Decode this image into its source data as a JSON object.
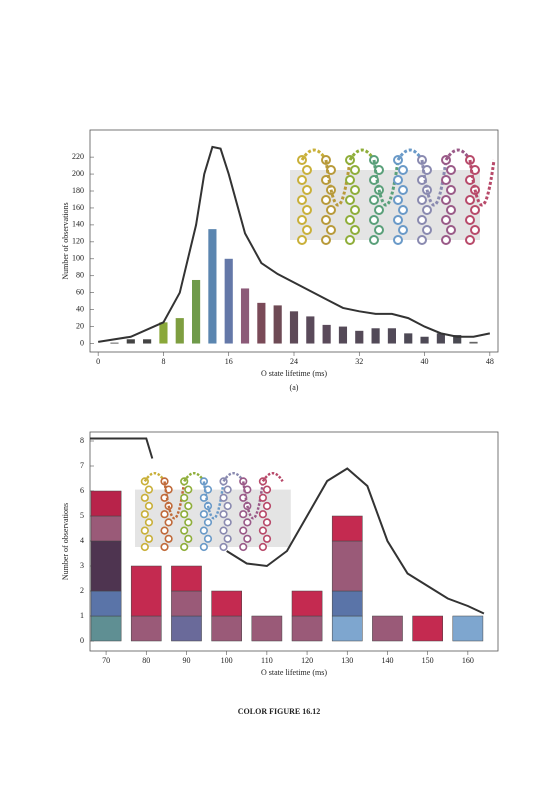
{
  "chart_data": [
    {
      "type": "bar",
      "label": "(a)",
      "xlabel": "O state lifetime (ms)",
      "ylabel": "Number of observations",
      "xlim": [
        -1,
        49
      ],
      "xticks": [
        0,
        8,
        16,
        24,
        32,
        40,
        48
      ],
      "ylim": [
        -10,
        252
      ],
      "yticks": [
        0,
        20,
        40,
        60,
        80,
        100,
        120,
        140,
        160,
        180,
        200,
        220
      ],
      "bar_width": 1,
      "series": [
        {
          "type": "bar",
          "x": [
            2,
            4,
            6,
            8,
            10,
            12,
            14,
            16,
            18,
            20,
            22,
            24,
            26,
            28,
            30,
            32,
            34,
            36,
            38,
            40,
            42,
            44,
            46
          ],
          "values": [
            1,
            5,
            5,
            25,
            30,
            75,
            135,
            100,
            65,
            48,
            45,
            38,
            32,
            22,
            20,
            15,
            18,
            18,
            12,
            8,
            12,
            10,
            2
          ],
          "colors": [
            "#444444",
            "#444444",
            "#444444",
            "#8aa83a",
            "#7e9e40",
            "#6f9a4a",
            "#5b86b0",
            "#6478a8",
            "#8c5a78",
            "#7a4a58",
            "#6e4a55",
            "#5e4a58",
            "#5a4a5a",
            "#5a4a5a",
            "#554a58",
            "#554a58",
            "#524a58",
            "#524a58",
            "#4e4a56",
            "#4e4a56",
            "#4e4a56",
            "#4a4a52",
            "#666666"
          ]
        },
        {
          "type": "line",
          "color": "#333333",
          "x": [
            0,
            4,
            8,
            10,
            12,
            13,
            14,
            15,
            16,
            18,
            20,
            22,
            24,
            26,
            28,
            30,
            32,
            34,
            36,
            38,
            40,
            42,
            44,
            46,
            48
          ],
          "values": [
            2,
            8,
            25,
            60,
            140,
            200,
            232,
            230,
            200,
            130,
            95,
            82,
            72,
            62,
            52,
            42,
            38,
            35,
            35,
            30,
            20,
            12,
            8,
            8,
            12
          ]
        }
      ]
    },
    {
      "type": "bar",
      "xlabel": "O state lifetime (ms)",
      "ylabel": "Number of observations",
      "xlim": [
        66,
        167.5
      ],
      "xticks": [
        70,
        80,
        90,
        100,
        110,
        120,
        130,
        140,
        150,
        160
      ],
      "ylim": [
        -0.4,
        8.36
      ],
      "yticks": [
        0,
        1,
        2,
        3,
        4,
        5,
        6,
        7,
        8
      ],
      "bar_width": 7.5,
      "x": [
        70,
        80,
        90,
        100,
        110,
        120,
        130,
        140,
        150,
        160
      ],
      "segments": [
        [
          {
            "value": 1,
            "color": "#5f8f93"
          },
          {
            "value": 1,
            "color": "#5a74a8"
          },
          {
            "value": 2,
            "color": "#4e3450"
          },
          {
            "value": 1,
            "color": "#9a5a78"
          },
          {
            "value": 1,
            "color": "#b8234a"
          }
        ],
        [
          {
            "value": 1,
            "color": "#9a5a78"
          },
          {
            "value": 2,
            "color": "#c42a50"
          }
        ],
        [
          {
            "value": 1,
            "color": "#6a6a9a"
          },
          {
            "value": 1,
            "color": "#9a5a78"
          },
          {
            "value": 1,
            "color": "#c42a50"
          }
        ],
        [
          {
            "value": 1,
            "color": "#9a5a78"
          },
          {
            "value": 1,
            "color": "#c42a50"
          }
        ],
        [
          {
            "value": 1,
            "color": "#9a5a78"
          }
        ],
        [
          {
            "value": 1,
            "color": "#9a5a78"
          },
          {
            "value": 1,
            "color": "#c42a50"
          }
        ],
        [
          {
            "value": 1,
            "color": "#7ea6cf"
          },
          {
            "value": 1,
            "color": "#5a74a8"
          },
          {
            "value": 2,
            "color": "#9a5a78"
          },
          {
            "value": 1,
            "color": "#c42a50"
          }
        ],
        [
          {
            "value": 1,
            "color": "#9a5a78"
          }
        ],
        [
          {
            "value": 1,
            "color": "#c42a50"
          }
        ],
        [
          {
            "value": 1,
            "color": "#7ea6cf"
          }
        ]
      ],
      "line": {
        "color": "#333333",
        "x": [
          66,
          80,
          81.5,
          90,
          100,
          105,
          110,
          115,
          120,
          125,
          130,
          135,
          140,
          145,
          150,
          155,
          160,
          164
        ],
        "values": [
          8.1,
          8.1,
          7.3,
          null,
          3.6,
          3.1,
          3.0,
          3.6,
          5.0,
          6.4,
          6.9,
          6.2,
          4.0,
          2.7,
          2.2,
          1.7,
          1.4,
          1.1
        ]
      }
    }
  ],
  "caption": "COLOR FIGURE 16.12"
}
